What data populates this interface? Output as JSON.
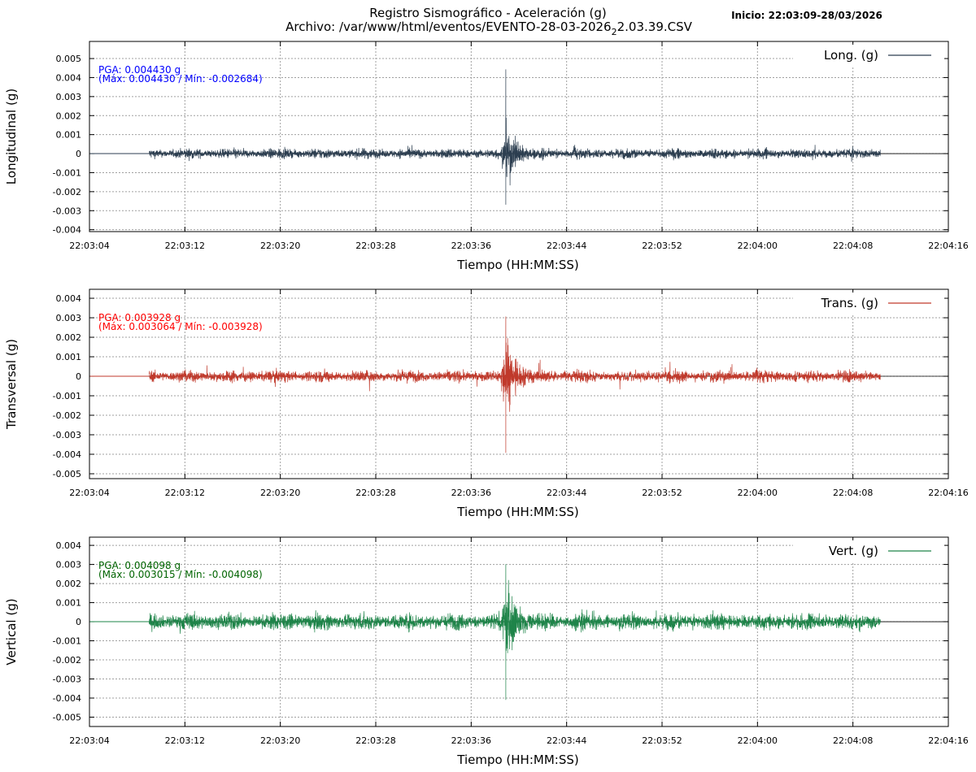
{
  "header": {
    "title": "Registro Sismográfico - Aceleración (g)",
    "file_prefix": "Archivo: /var/www/html/eventos/EVENTO-28-03-2026",
    "file_sub": "2",
    "file_suffix": "2.03.39.CSV",
    "start": "Inicio: 22:03:09-28/03/2026"
  },
  "chart_data": [
    {
      "type": "line",
      "series_name": "Long. (g)",
      "ylabel": "Longitudinal (g)",
      "xlabel": "Tiempo (HH:MM:SS)",
      "color": "#2c3e50",
      "annot_color": "#0000ff",
      "pga": "PGA: 0.004430 g",
      "maxmin": "(Máx: 0.004430 / Mín: -0.002684)",
      "max": 0.00443,
      "min": -0.002684,
      "noise": 0.00022,
      "event_amp": 0.0018,
      "ylim": [
        -0.0041,
        0.0059
      ],
      "yticks": [
        "0.005",
        "0.004",
        "0.003",
        "0.002",
        "0.001",
        "0",
        "-0.001",
        "-0.002",
        "-0.003",
        "-0.004"
      ],
      "ytick_values": [
        0.005,
        0.004,
        0.003,
        0.002,
        0.001,
        0,
        -0.001,
        -0.002,
        -0.003,
        -0.004
      ]
    },
    {
      "type": "line",
      "series_name": "Trans. (g)",
      "ylabel": "Transversal (g)",
      "xlabel": "Tiempo (HH:MM:SS)",
      "color": "#c0392b",
      "annot_color": "#ff0000",
      "pga": "PGA: 0.003928 g",
      "maxmin": "(Máx: 0.003064 / Mín: -0.003928)",
      "max": 0.003064,
      "min": -0.003928,
      "noise": 0.00025,
      "event_amp": 0.0022,
      "ylim": [
        -0.00525,
        0.00446
      ],
      "yticks": [
        "0.004",
        "0.003",
        "0.002",
        "0.001",
        "0",
        "-0.001",
        "-0.002",
        "-0.003",
        "-0.004",
        "-0.005"
      ],
      "ytick_values": [
        0.004,
        0.003,
        0.002,
        0.001,
        0,
        -0.001,
        -0.002,
        -0.003,
        -0.004,
        -0.005
      ]
    },
    {
      "type": "line",
      "series_name": "Vert. (g)",
      "ylabel": "Vertical (g)",
      "xlabel": "Tiempo (HH:MM:SS)",
      "color": "#1e8449",
      "annot_color": "#006400",
      "pga": "PGA: 0.004098 g",
      "maxmin": "(Máx: 0.003015 / Mín: -0.004098)",
      "max": 0.003015,
      "min": -0.004098,
      "noise": 0.00036,
      "event_amp": 0.0024,
      "ylim": [
        -0.00549,
        0.00443
      ],
      "yticks": [
        "0.004",
        "0.003",
        "0.002",
        "0.001",
        "0",
        "-0.001",
        "-0.002",
        "-0.003",
        "-0.004",
        "-0.005"
      ],
      "ytick_values": [
        0.004,
        0.003,
        0.002,
        0.001,
        0,
        -0.001,
        -0.002,
        -0.003,
        -0.004,
        -0.005
      ]
    }
  ],
  "x_axis": {
    "range_seconds": [
      0,
      72
    ],
    "ticks": [
      "22:03:04",
      "22:03:12",
      "22:03:20",
      "22:03:28",
      "22:03:36",
      "22:03:44",
      "22:03:52",
      "22:04:00",
      "22:04:08",
      "22:04:16"
    ],
    "tick_values": [
      0,
      8,
      16,
      24,
      32,
      40,
      48,
      56,
      64,
      72
    ],
    "data_start": 5,
    "data_end": 66.3,
    "event_time": 34.9,
    "secondary_event": 40.6
  }
}
